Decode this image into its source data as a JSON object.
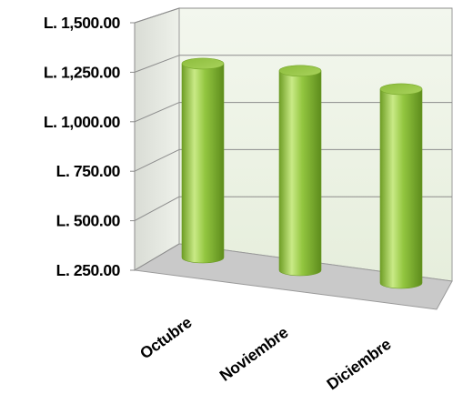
{
  "chart_data": {
    "type": "bar",
    "style": "3d-cylinder",
    "categories": [
      "Octubre",
      "Noviembre",
      "Diciembre"
    ],
    "values": [
      1295,
      1325,
      1295
    ],
    "y_ticks": [
      250,
      500,
      750,
      1000,
      1250,
      1500
    ],
    "y_tick_labels": [
      "L. 250.00",
      "L. 500.00",
      "L. 750.00",
      "L. 1,000.00",
      "L. 1,250.00",
      "L. 1,500.00"
    ],
    "ylim": [
      250,
      1500
    ],
    "grid": true,
    "legend": "none",
    "colors": {
      "bar_main": "#8fc43b",
      "bar_light": "#c6e87f",
      "bar_dark": "#5f8f1f",
      "bar_top": "#9fce4c",
      "wall": "#eef4e6",
      "floor": "#c8c8c8",
      "grid": "#8c8c8c"
    }
  }
}
